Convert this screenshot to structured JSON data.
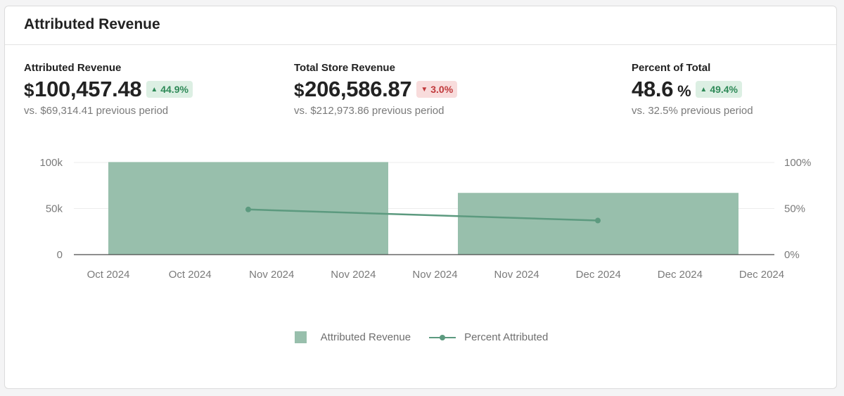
{
  "card": {
    "title": "Attributed Revenue"
  },
  "metrics": [
    {
      "label": "Attributed Revenue",
      "currency": "$",
      "value": "100,457.48",
      "unit": "",
      "change": "44.9%",
      "direction": "up",
      "comparison": "vs. $69,314.41 previous period"
    },
    {
      "label": "Total Store Revenue",
      "currency": "$",
      "value": "206,586.87",
      "unit": "",
      "change": "3.0%",
      "direction": "down",
      "comparison": "vs. $212,973.86 previous period"
    },
    {
      "label": "Percent of Total",
      "currency": "",
      "value": "48.6",
      "unit": "%",
      "change": "49.4%",
      "direction": "up",
      "comparison": "vs. 32.5% previous period"
    }
  ],
  "colors": {
    "bar": "#98bfac",
    "line": "#5c9a7f",
    "up": "#2f8a58",
    "down": "#c0393b"
  },
  "icons": {
    "up": "triangle-up-icon",
    "down": "triangle-down-icon"
  },
  "chart_data": {
    "type": "bar",
    "x_tick_labels": [
      "Oct 2024",
      "Oct 2024",
      "Nov 2024",
      "Nov 2024",
      "Nov 2024",
      "Nov 2024",
      "Dec 2024",
      "Dec 2024",
      "Dec 2024"
    ],
    "y_left": {
      "ticks": [
        "0",
        "50k",
        "100k"
      ],
      "tick_values": [
        0,
        50000,
        100000
      ],
      "range": [
        0,
        100000
      ]
    },
    "y_right": {
      "ticks": [
        "0%",
        "50%",
        "100%"
      ],
      "tick_values": [
        0,
        50,
        100
      ],
      "range": [
        0,
        100
      ]
    },
    "series": [
      {
        "name": "Attributed Revenue",
        "type": "bar",
        "periods": [
          "Nov 2024",
          "Dec 2024"
        ],
        "values": [
          100457,
          67000
        ]
      },
      {
        "name": "Percent Attributed",
        "type": "line",
        "axis": "right",
        "periods": [
          "Nov 2024",
          "Dec 2024"
        ],
        "values": [
          49,
          37
        ]
      }
    ],
    "grid": true,
    "legend_position": "bottom"
  }
}
